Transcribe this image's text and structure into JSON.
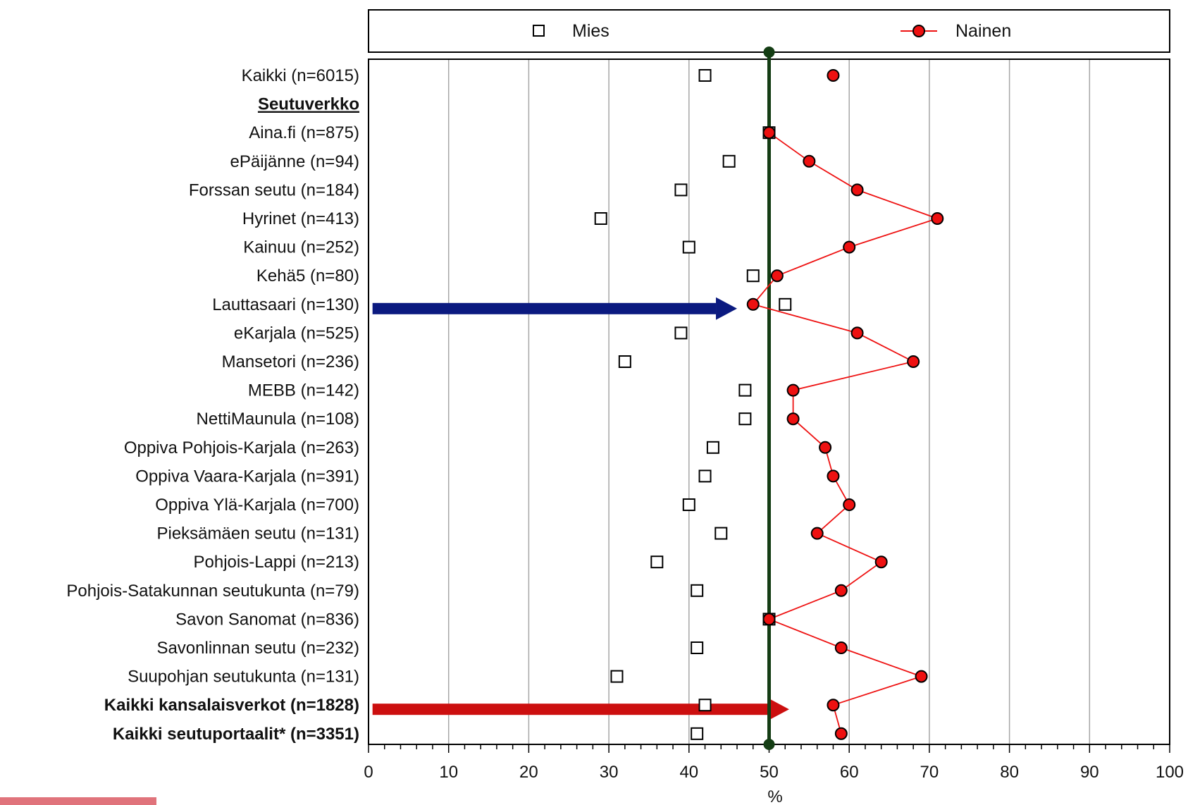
{
  "chart_data": {
    "type": "scatter",
    "xlabel": "%",
    "xlim": [
      0,
      100
    ],
    "x_ticks": [
      0,
      10,
      20,
      30,
      40,
      50,
      60,
      70,
      80,
      90,
      100
    ],
    "grid": "vertical",
    "legend": {
      "placement": "top",
      "entries": [
        "Mies",
        "Nainen"
      ]
    },
    "reference_line": {
      "x": 50,
      "color": "#143d14"
    },
    "categories": [
      "Kaikki (n=6015)",
      "Seutuverkko",
      "Aina.fi (n=875)",
      "ePäijänne (n=94)",
      "Forssan seutu (n=184)",
      "Hyrinet (n=413)",
      "Kainuu (n=252)",
      "Kehä5 (n=80)",
      "Lauttasaari (n=130)",
      "eKarjala (n=525)",
      "Mansetori (n=236)",
      "MEBB (n=142)",
      "NettiMaunula (n=108)",
      "Oppiva Pohjois-Karjala (n=263)",
      "Oppiva Vaara-Karjala (n=391)",
      "Oppiva Ylä-Karjala (n=700)",
      "Pieksämäen seutu (n=131)",
      "Pohjois-Lappi (n=213)",
      "Pohjois-Satakunnan seutukunta (n=79)",
      "Savon Sanomat (n=836)",
      "Savonlinnan seutu (n=232)",
      "Suupohjan seutukunta (n=131)",
      "Kaikki kansalaisverkot (n=1828)",
      "Kaikki seutuportaalit* (n=3351)"
    ],
    "category_styles": [
      "normal",
      "header",
      "normal",
      "normal",
      "normal",
      "normal",
      "normal",
      "normal",
      "normal",
      "normal",
      "normal",
      "normal",
      "normal",
      "normal",
      "normal",
      "normal",
      "normal",
      "normal",
      "normal",
      "normal",
      "normal",
      "normal",
      "bold",
      "bold"
    ],
    "series": [
      {
        "name": "Mies",
        "marker": "open-square",
        "color": "#000000",
        "values": [
          42,
          null,
          50,
          45,
          39,
          29,
          40,
          48,
          52,
          39,
          32,
          47,
          47,
          43,
          42,
          40,
          44,
          36,
          41,
          50,
          41,
          31,
          42,
          41
        ]
      },
      {
        "name": "Nainen",
        "marker": "red-circle-line",
        "color": "#ee1111",
        "values": [
          58,
          null,
          50,
          55,
          61,
          71,
          60,
          51,
          48,
          61,
          68,
          53,
          53,
          57,
          58,
          60,
          56,
          64,
          59,
          50,
          59,
          69,
          58,
          59
        ],
        "connected_from_index": 2
      }
    ],
    "annotations": [
      {
        "type": "arrow",
        "color": "#0b1a80",
        "row_index": 8,
        "x_start": 0.5,
        "x_end": 46
      },
      {
        "type": "arrow",
        "color": "#cc0f0f",
        "row_index": 22,
        "x_start": 0.5,
        "x_end": 52.5
      }
    ]
  }
}
